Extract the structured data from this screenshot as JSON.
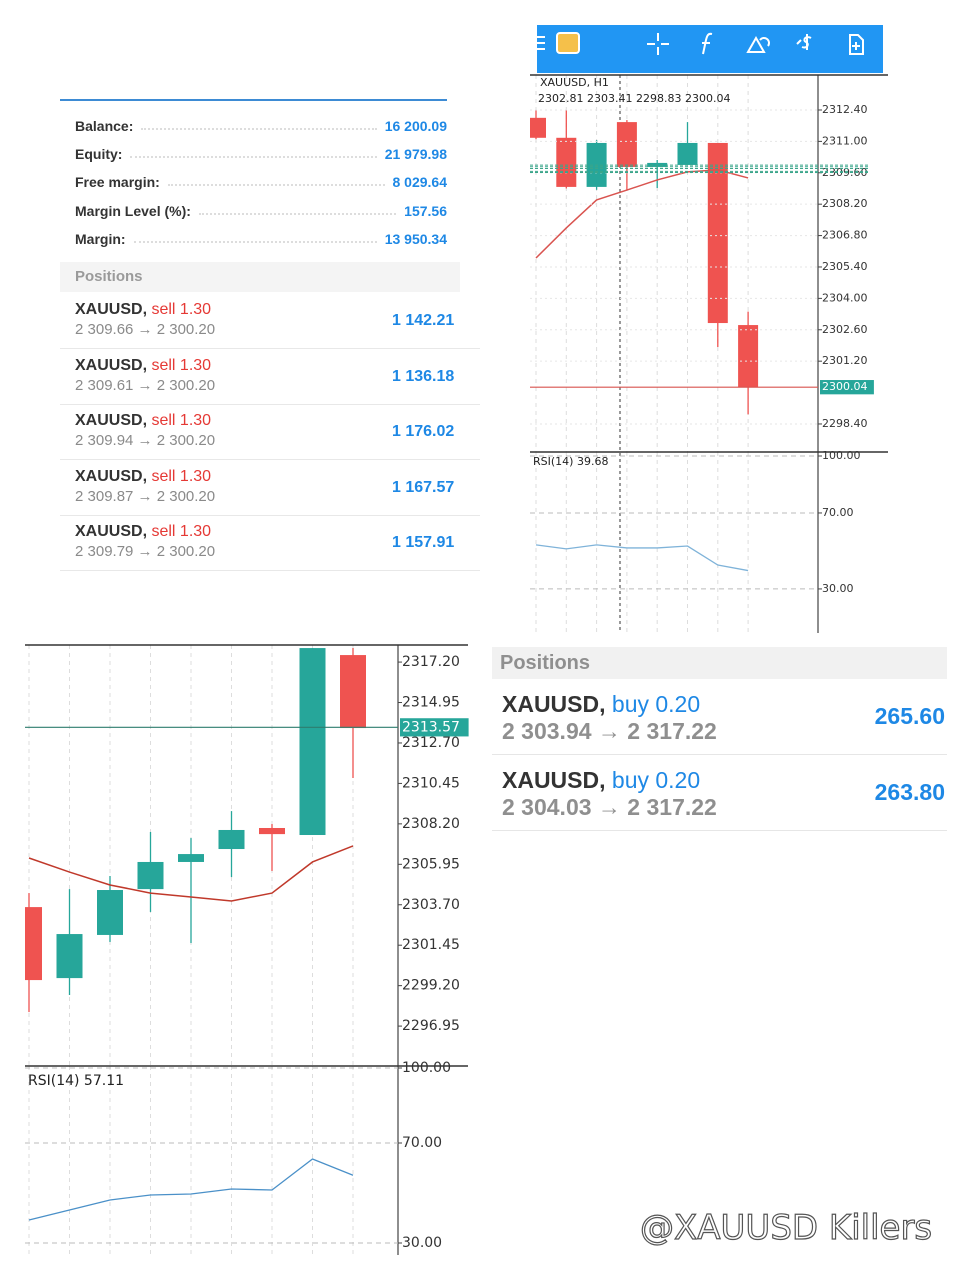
{
  "account": {
    "rows": [
      {
        "label": "Balance:",
        "value": "16 200.09"
      },
      {
        "label": "Equity:",
        "value": "21 979.98"
      },
      {
        "label": "Free margin:",
        "value": "8 029.64"
      },
      {
        "label": "Margin Level (%):",
        "value": "157.56"
      },
      {
        "label": "Margin:",
        "value": "13 950.34"
      }
    ],
    "positions_header": "Positions",
    "positions": [
      {
        "symbol": "XAUUSD,",
        "side": "sell 1.30",
        "prices": "2 309.66 → 2 300.20",
        "profit": "1 142.21"
      },
      {
        "symbol": "XAUUSD,",
        "side": "sell 1.30",
        "prices": "2 309.61 → 2 300.20",
        "profit": "1 136.18"
      },
      {
        "symbol": "XAUUSD,",
        "side": "sell 1.30",
        "prices": "2 309.94 → 2 300.20",
        "profit": "1 176.02"
      },
      {
        "symbol": "XAUUSD,",
        "side": "sell 1.30",
        "prices": "2 309.87 → 2 300.20",
        "profit": "1 167.57"
      },
      {
        "symbol": "XAUUSD,",
        "side": "sell 1.30",
        "prices": "2 309.79 → 2 300.20",
        "profit": "1 157.91"
      }
    ]
  },
  "chart_data": [
    {
      "type": "candlestick",
      "title": "XAUUSD, H1",
      "subtitle": "2302.81 2303.41 2298.83 2300.04",
      "open": [
        2312.05,
        2311.16,
        2308.97,
        2311.86,
        2309.86,
        2309.95,
        2310.93,
        2302.81
      ],
      "high": [
        2312.4,
        2312.4,
        2311.06,
        2311.95,
        2310.17,
        2311.86,
        2310.93,
        2303.41
      ],
      "low": [
        2311.1,
        2308.9,
        2308.84,
        2308.84,
        2308.92,
        2309.95,
        2301.83,
        2298.83
      ],
      "close": [
        2311.16,
        2308.97,
        2310.93,
        2309.86,
        2310.04,
        2310.93,
        2302.9,
        2300.04
      ],
      "ma": [
        2305.8,
        2307.14,
        2308.39,
        2308.83,
        2309.28,
        2309.64,
        2309.73,
        2309.37
      ],
      "up_color": "#26a69a",
      "down_color": "#ef5350",
      "ma_color": "#d9534f",
      "ylim": [
        2297.15,
        2313.96
      ],
      "yticks": [
        {
          "value": 2312.4,
          "label": "2312.40"
        },
        {
          "value": 2311,
          "label": "2311.00"
        },
        {
          "value": 2309.6,
          "label": "2309.60"
        },
        {
          "value": 2308.2,
          "label": "2308.20"
        },
        {
          "value": 2306.8,
          "label": "2306.80"
        },
        {
          "value": 2305.4,
          "label": "2305.40"
        },
        {
          "value": 2304,
          "label": "2304.00"
        },
        {
          "value": 2302.6,
          "label": "2302.60"
        },
        {
          "value": 2301.2,
          "label": "2301.20"
        },
        {
          "value": 2298.4,
          "label": "2298.40"
        }
      ],
      "current_price": {
        "value": 2300.04,
        "label": "2300.04"
      },
      "order_levels": [
        2309.66,
        2309.61,
        2309.94,
        2309.87,
        2309.79
      ],
      "grid": true
    },
    {
      "type": "line",
      "title": "RSI(14) 39.68",
      "values": [
        53.2,
        51.1,
        53.2,
        51.6,
        51.6,
        52.6,
        42.6,
        39.68
      ],
      "color": "#7fb3d9",
      "ylim": [
        6.8,
        102.1
      ],
      "yticks": [
        {
          "value": 100,
          "label": "100.00"
        },
        {
          "value": 70,
          "label": "70.00"
        },
        {
          "value": 30,
          "label": "30.00"
        }
      ],
      "grid": true
    },
    {
      "type": "candlestick",
      "open": [
        2303.57,
        2299.62,
        2302.02,
        2304.57,
        2306.08,
        2306.8,
        2307.97,
        2307.58,
        2317.59
      ],
      "high": [
        2304.35,
        2304.57,
        2305.3,
        2307.75,
        2307.41,
        2308.91,
        2308.19,
        2317.98,
        2317.98
      ],
      "low": [
        2297.73,
        2298.68,
        2301.63,
        2303.3,
        2301.57,
        2305.24,
        2305.58,
        2307.58,
        2310.75
      ],
      "close": [
        2299.51,
        2302.07,
        2304.52,
        2306.08,
        2306.52,
        2307.86,
        2307.63,
        2317.98,
        2313.53
      ],
      "ma": [
        2306.3,
        2305.52,
        2304.8,
        2304.35,
        2304.13,
        2303.91,
        2304.35,
        2306.08,
        2306.97
      ],
      "up_color": "#26a69a",
      "down_color": "#ef5350",
      "ma_color": "#c0392b",
      "ylim": [
        2294.73,
        2318.15
      ],
      "yticks": [
        {
          "value": 2317.2,
          "label": "2317.20"
        },
        {
          "value": 2314.95,
          "label": "2314.95"
        },
        {
          "value": 2312.7,
          "label": "2312.70"
        },
        {
          "value": 2310.45,
          "label": "2310.45"
        },
        {
          "value": 2308.2,
          "label": "2308.20"
        },
        {
          "value": 2305.95,
          "label": "2305.95"
        },
        {
          "value": 2303.7,
          "label": "2303.70"
        },
        {
          "value": 2301.45,
          "label": "2301.45"
        },
        {
          "value": 2299.2,
          "label": "2299.20"
        },
        {
          "value": 2296.95,
          "label": "2296.95"
        }
      ],
      "current_price": {
        "value": 2313.57,
        "label": "2313.57"
      },
      "grid": false
    },
    {
      "type": "line",
      "title": "RSI(14) 57.11",
      "values": [
        39.2,
        43.2,
        47.2,
        49.2,
        49.6,
        51.6,
        51.2,
        63.6,
        57.11
      ],
      "color": "#4a90c8",
      "ylim": [
        25.2,
        100.8
      ],
      "yticks": [
        {
          "value": 100,
          "label": "100.00"
        },
        {
          "value": 70,
          "label": "70.00"
        },
        {
          "value": 30,
          "label": "30.00"
        }
      ],
      "grid": true
    }
  ],
  "positions_panel": {
    "header": "Positions",
    "positions": [
      {
        "symbol": "XAUUSD,",
        "side": "buy 0.20",
        "prices": "2 303.94 → 2 317.22",
        "profit": "265.60"
      },
      {
        "symbol": "XAUUSD,",
        "side": "buy 0.20",
        "prices": "2 304.03 → 2 317.22",
        "profit": "263.80"
      }
    ]
  },
  "watermark": "@XAUUSD Killers"
}
